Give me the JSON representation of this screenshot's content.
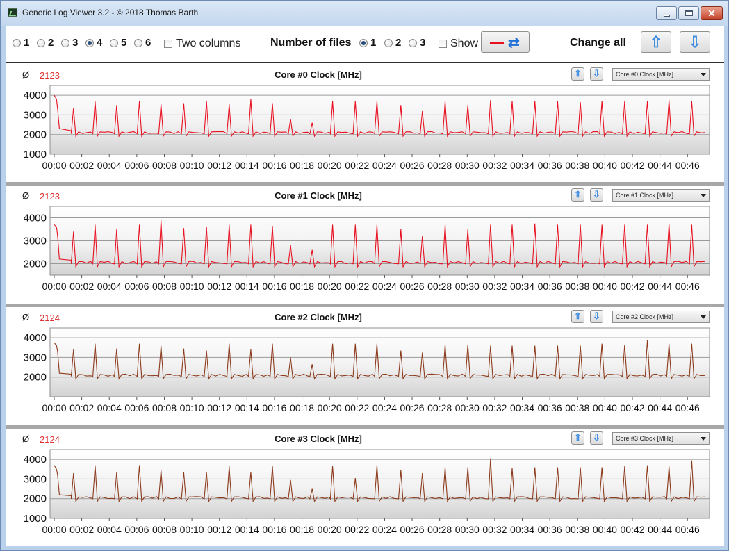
{
  "window": {
    "title": "Generic Log Viewer 3.2 - © 2018 Thomas Barth"
  },
  "toolbar": {
    "columns": [
      {
        "label": "1",
        "selected": false
      },
      {
        "label": "2",
        "selected": false
      },
      {
        "label": "3",
        "selected": false
      },
      {
        "label": "4",
        "selected": true
      },
      {
        "label": "5",
        "selected": false
      },
      {
        "label": "6",
        "selected": false
      }
    ],
    "two_columns_label": "Two columns",
    "number_of_files_label": "Number of files",
    "files": [
      {
        "label": "1",
        "selected": true
      },
      {
        "label": "2",
        "selected": false
      },
      {
        "label": "3",
        "selected": false
      }
    ],
    "show_label": "Show",
    "change_all_label": "Change all",
    "line_color": "#e81020"
  },
  "panels": [
    {
      "avg_symbol": "Ø",
      "avg_value": "2123",
      "title": "Core #0 Clock [MHz]",
      "combo_value": "Core #0 Clock [MHz]"
    },
    {
      "avg_symbol": "Ø",
      "avg_value": "2123",
      "title": "Core #1 Clock [MHz]",
      "combo_value": "Core #1 Clock [MHz]"
    },
    {
      "avg_symbol": "Ø",
      "avg_value": "2124",
      "title": "Core #2 Clock [MHz]",
      "combo_value": "Core #2 Clock [MHz]"
    },
    {
      "avg_symbol": "Ø",
      "avg_value": "2124",
      "title": "Core #3 Clock [MHz]",
      "combo_value": "Core #3 Clock [MHz]"
    }
  ],
  "chart_data": [
    {
      "type": "line",
      "title": "Core #0 Clock [MHz]",
      "ylim": [
        1000,
        4500
      ],
      "y_ticks": [
        "1000",
        "2000",
        "3000",
        "4000"
      ],
      "x_ticks": [
        "00:00",
        "00:02",
        "00:04",
        "00:06",
        "00:08",
        "00:10",
        "00:12",
        "00:14",
        "00:16",
        "00:18",
        "00:20",
        "00:22",
        "00:24",
        "00:26",
        "00:28",
        "00:30",
        "00:32",
        "00:34",
        "00:36",
        "00:38",
        "00:40",
        "00:42",
        "00:44",
        "00:46"
      ],
      "xlim_min": [
        0,
        47.5
      ],
      "color": "#e81020",
      "series": [
        {
          "base": 2100,
          "start": [
            [
              0,
              4000
            ],
            [
              0.2,
              3800
            ],
            [
              0.3,
              3300
            ],
            [
              0.45,
              2300
            ],
            [
              1.5,
              2200
            ]
          ],
          "spikes": [
            [
              1.7,
              3350
            ],
            [
              3.6,
              3700
            ],
            [
              5.5,
              3500
            ],
            [
              7.5,
              3700
            ],
            [
              9.4,
              3550
            ],
            [
              11.4,
              3600
            ],
            [
              13.4,
              3700
            ],
            [
              15.4,
              3550
            ],
            [
              17.3,
              3800
            ],
            [
              19.2,
              3600
            ],
            [
              20.8,
              2800
            ],
            [
              22.7,
              2600
            ],
            [
              24.5,
              3700
            ],
            [
              26.5,
              3700
            ],
            [
              28.4,
              3700
            ],
            [
              30.5,
              3500
            ],
            [
              32.4,
              3200
            ],
            [
              34.4,
              3700
            ],
            [
              36.4,
              3500
            ],
            [
              38.4,
              3750
            ],
            [
              40.3,
              3700
            ],
            [
              42.3,
              3700
            ],
            [
              44.3,
              3700
            ],
            [
              46.3,
              3650
            ],
            [
              48.2,
              3700
            ],
            [
              50.2,
              3700
            ],
            [
              52.2,
              3700
            ],
            [
              54.1,
              3750
            ],
            [
              56.1,
              3700
            ]
          ],
          "x_end": 57.3
        }
      ]
    },
    {
      "type": "line",
      "title": "Core #1 Clock [MHz]",
      "ylim": [
        1500,
        4500
      ],
      "y_ticks": [
        "2000",
        "3000",
        "4000"
      ],
      "x_ticks": [
        "00:00",
        "00:02",
        "00:04",
        "00:06",
        "00:08",
        "00:10",
        "00:12",
        "00:14",
        "00:16",
        "00:18",
        "00:20",
        "00:22",
        "00:24",
        "00:26",
        "00:28",
        "00:30",
        "00:32",
        "00:34",
        "00:36",
        "00:38",
        "00:40",
        "00:42",
        "00:44",
        "00:46"
      ],
      "xlim_min": [
        0,
        47.5
      ],
      "color": "#e81020",
      "series": [
        {
          "base": 2050,
          "start": [
            [
              0,
              3700
            ],
            [
              0.2,
              3600
            ],
            [
              0.3,
              3200
            ],
            [
              0.45,
              2200
            ],
            [
              1.5,
              2150
            ]
          ],
          "spikes": [
            [
              1.7,
              3400
            ],
            [
              3.6,
              3700
            ],
            [
              5.5,
              3500
            ],
            [
              7.5,
              3700
            ],
            [
              9.4,
              3900
            ],
            [
              11.4,
              3550
            ],
            [
              13.4,
              3600
            ],
            [
              15.4,
              3700
            ],
            [
              17.3,
              3700
            ],
            [
              19.2,
              3650
            ],
            [
              20.8,
              2800
            ],
            [
              22.7,
              2600
            ],
            [
              24.5,
              3700
            ],
            [
              26.5,
              3700
            ],
            [
              28.4,
              3700
            ],
            [
              30.5,
              3500
            ],
            [
              32.4,
              3200
            ],
            [
              34.4,
              3700
            ],
            [
              36.4,
              3500
            ],
            [
              38.4,
              3700
            ],
            [
              40.3,
              3700
            ],
            [
              42.3,
              3750
            ],
            [
              44.3,
              3700
            ],
            [
              46.3,
              3700
            ],
            [
              48.2,
              3700
            ],
            [
              50.2,
              3700
            ],
            [
              52.2,
              3700
            ],
            [
              54.1,
              3750
            ],
            [
              56.1,
              3700
            ]
          ],
          "x_end": 57.3
        }
      ]
    },
    {
      "type": "line",
      "title": "Core #2 Clock [MHz]",
      "ylim": [
        1000,
        4500
      ],
      "y_ticks": [
        "2000",
        "3000",
        "4000"
      ],
      "x_ticks": [
        "00:00",
        "00:02",
        "00:04",
        "00:06",
        "00:08",
        "00:10",
        "00:12",
        "00:14",
        "00:16",
        "00:18",
        "00:20",
        "00:22",
        "00:24",
        "00:26",
        "00:28",
        "00:30",
        "00:32",
        "00:34",
        "00:36",
        "00:38",
        "00:40",
        "00:42",
        "00:44",
        "00:46"
      ],
      "xlim_min": [
        0,
        47.5
      ],
      "color": "#8c3a1c",
      "series": [
        {
          "base": 2100,
          "start": [
            [
              0,
              3750
            ],
            [
              0.2,
              3600
            ],
            [
              0.3,
              3300
            ],
            [
              0.45,
              2200
            ],
            [
              1.5,
              2150
            ]
          ],
          "spikes": [
            [
              1.7,
              3400
            ],
            [
              3.6,
              3700
            ],
            [
              5.5,
              3450
            ],
            [
              7.5,
              3700
            ],
            [
              9.4,
              3600
            ],
            [
              11.4,
              3450
            ],
            [
              13.4,
              3350
            ],
            [
              15.4,
              3700
            ],
            [
              17.3,
              3400
            ],
            [
              19.2,
              3700
            ],
            [
              20.8,
              3000
            ],
            [
              22.7,
              2650
            ],
            [
              24.5,
              3700
            ],
            [
              26.5,
              3700
            ],
            [
              28.4,
              3700
            ],
            [
              30.5,
              3350
            ],
            [
              32.4,
              3250
            ],
            [
              34.4,
              3650
            ],
            [
              36.4,
              3650
            ],
            [
              38.4,
              3600
            ],
            [
              40.3,
              3600
            ],
            [
              42.3,
              3600
            ],
            [
              44.3,
              3600
            ],
            [
              46.3,
              3600
            ],
            [
              48.2,
              3700
            ],
            [
              50.2,
              3650
            ],
            [
              52.2,
              3900
            ],
            [
              54.1,
              3700
            ],
            [
              56.1,
              3700
            ]
          ],
          "x_end": 57.3
        }
      ]
    },
    {
      "type": "line",
      "title": "Core #3 Clock [MHz]",
      "ylim": [
        1000,
        4500
      ],
      "y_ticks": [
        "1000",
        "2000",
        "3000",
        "4000"
      ],
      "x_ticks": [
        "00:00",
        "00:02",
        "00:04",
        "00:06",
        "00:08",
        "00:10",
        "00:12",
        "00:14",
        "00:16",
        "00:18",
        "00:20",
        "00:22",
        "00:24",
        "00:26",
        "00:28",
        "00:30",
        "00:32",
        "00:34",
        "00:36",
        "00:38",
        "00:40",
        "00:42",
        "00:44",
        "00:46"
      ],
      "xlim_min": [
        0,
        47.5
      ],
      "color": "#8c3a1c",
      "series": [
        {
          "base": 2050,
          "start": [
            [
              0,
              3700
            ],
            [
              0.2,
              3500
            ],
            [
              0.3,
              3200
            ],
            [
              0.45,
              2200
            ],
            [
              1.5,
              2150
            ]
          ],
          "spikes": [
            [
              1.7,
              3300
            ],
            [
              3.6,
              3700
            ],
            [
              5.5,
              3350
            ],
            [
              7.5,
              3700
            ],
            [
              9.4,
              3450
            ],
            [
              11.4,
              3350
            ],
            [
              13.4,
              3350
            ],
            [
              15.4,
              3650
            ],
            [
              17.3,
              3350
            ],
            [
              19.2,
              3650
            ],
            [
              20.8,
              2950
            ],
            [
              22.7,
              2500
            ],
            [
              24.5,
              3650
            ],
            [
              26.5,
              3050
            ],
            [
              28.4,
              3700
            ],
            [
              30.5,
              3450
            ],
            [
              32.4,
              3300
            ],
            [
              34.4,
              3600
            ],
            [
              36.4,
              3600
            ],
            [
              38.4,
              4050
            ],
            [
              40.3,
              3550
            ],
            [
              42.3,
              3600
            ],
            [
              44.3,
              3600
            ],
            [
              46.3,
              3600
            ],
            [
              48.2,
              3600
            ],
            [
              50.2,
              3650
            ],
            [
              52.2,
              3700
            ],
            [
              54.1,
              3650
            ],
            [
              56.1,
              3950
            ]
          ],
          "x_end": 57.3
        }
      ]
    }
  ]
}
